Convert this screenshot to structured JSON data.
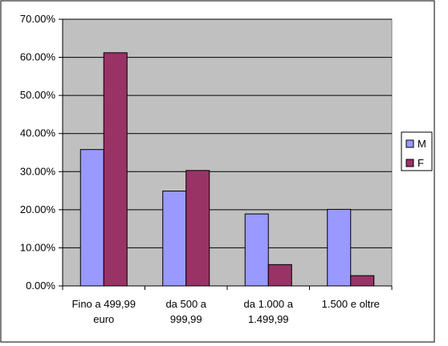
{
  "chart_data": {
    "type": "bar",
    "categories": [
      [
        "Fino a 499,99",
        "euro"
      ],
      [
        "da 500 a",
        "999,99"
      ],
      [
        "da 1.000 a",
        "1.499,99"
      ],
      [
        "1.500 e oltre"
      ]
    ],
    "series": [
      {
        "name": "M",
        "values": [
          0.358,
          0.249,
          0.189,
          0.201
        ],
        "color": "#9999ff"
      },
      {
        "name": "F",
        "values": [
          0.612,
          0.303,
          0.056,
          0.027
        ],
        "color": "#993366"
      }
    ],
    "ylim": [
      0,
      0.7
    ],
    "yticks": [
      "0.00%",
      "10.00%",
      "20.00%",
      "30.00%",
      "40.00%",
      "50.00%",
      "60.00%",
      "70.00%"
    ],
    "plot_background": "#c0c0c0",
    "grid": true,
    "legend_position": "right"
  }
}
